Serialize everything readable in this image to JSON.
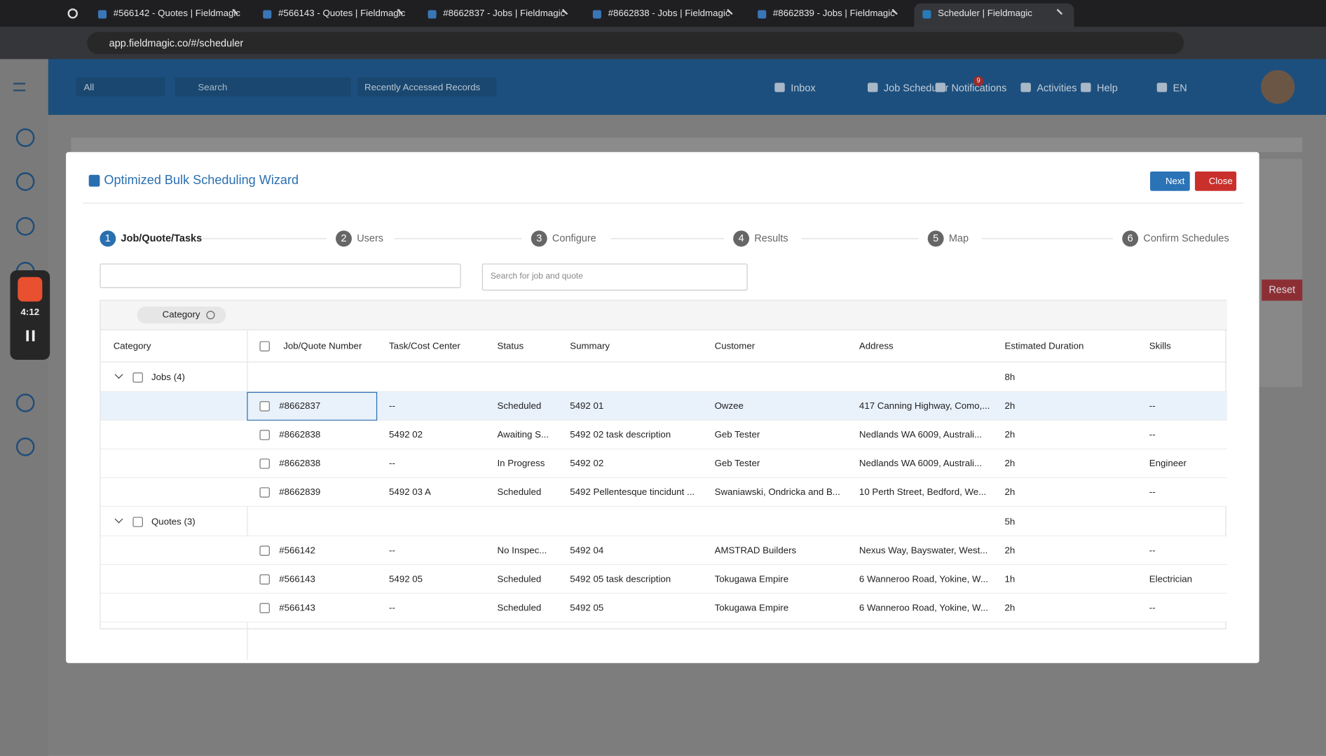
{
  "browser": {
    "tabs": [
      "#566142 - Quotes | Fieldmagic",
      "#566143 - Quotes | Fieldmagic",
      "#8662837 - Jobs | Fieldmagic",
      "#8662838 - Jobs | Fieldmagic",
      "#8662839 - Jobs | Fieldmagic",
      "Scheduler | Fieldmagic"
    ],
    "url": "app.fieldmagic.co/#/scheduler"
  },
  "header": {
    "filter": "All",
    "search_placeholder": "Search",
    "recent": "Recently Accessed Records",
    "nav": [
      "Inbox",
      "Job Scheduler",
      "Notifications",
      "Activities",
      "Help",
      "EN"
    ],
    "notification_count": 9
  },
  "recorder": {
    "time": "4:12"
  },
  "background": {
    "reset": "Reset"
  },
  "wizard": {
    "title": "Optimized Bulk Scheduling Wizard",
    "buttons": [
      "Next",
      "Close"
    ],
    "steps": [
      {
        "number": 1,
        "label": "Job/Quote/Tasks"
      },
      {
        "number": 2,
        "label": "Users"
      },
      {
        "number": 3,
        "label": "Configure"
      },
      {
        "number": 4,
        "label": "Results"
      },
      {
        "number": 5,
        "label": "Map"
      },
      {
        "number": 6,
        "label": "Confirm Schedules"
      }
    ],
    "search_placeholder": "Search for job and quote",
    "group_chip": "Category"
  },
  "table": {
    "columns": [
      "Category",
      "Job/Quote Number",
      "Task/Cost Center",
      "Status",
      "Summary",
      "Customer",
      "Address",
      "Estimated Duration",
      "Skills"
    ],
    "groups": [
      {
        "label": "Jobs (4)",
        "duration": "8h",
        "rows": [
          [
            "#8662837",
            "--",
            "Scheduled",
            "5492 01",
            "Owzee",
            "417 Canning Highway, Como,...",
            "2h",
            "--"
          ],
          [
            "#8662838",
            "5492 02",
            "Awaiting S...",
            "5492 02 task description",
            "Geb Tester",
            "Nedlands WA 6009, Australi...",
            "2h",
            "--"
          ],
          [
            "#8662838",
            "--",
            "In Progress",
            "5492 02",
            "Geb Tester",
            "Nedlands WA 6009, Australi...",
            "2h",
            "Engineer"
          ],
          [
            "#8662839",
            "5492 03 A",
            "Scheduled",
            "5492 Pellentesque tincidunt ...",
            "Swaniawski, Ondricka and B...",
            "10 Perth Street, Bedford, We...",
            "2h",
            "--"
          ]
        ]
      },
      {
        "label": "Quotes (3)",
        "duration": "5h",
        "rows": [
          [
            "#566142",
            "--",
            "No Inspec...",
            "5492 04",
            "AMSTRAD Builders",
            "Nexus Way, Bayswater, West...",
            "2h",
            "--"
          ],
          [
            "#566143",
            "5492 05",
            "Scheduled",
            "5492 05 task description",
            "Tokugawa Empire",
            "6 Wanneroo Road, Yokine, W...",
            "1h",
            "Electrician"
          ],
          [
            "#566143",
            "--",
            "Scheduled",
            "5492 05",
            "Tokugawa Empire",
            "6 Wanneroo Road, Yokine, W...",
            "2h",
            "--"
          ]
        ]
      }
    ]
  }
}
